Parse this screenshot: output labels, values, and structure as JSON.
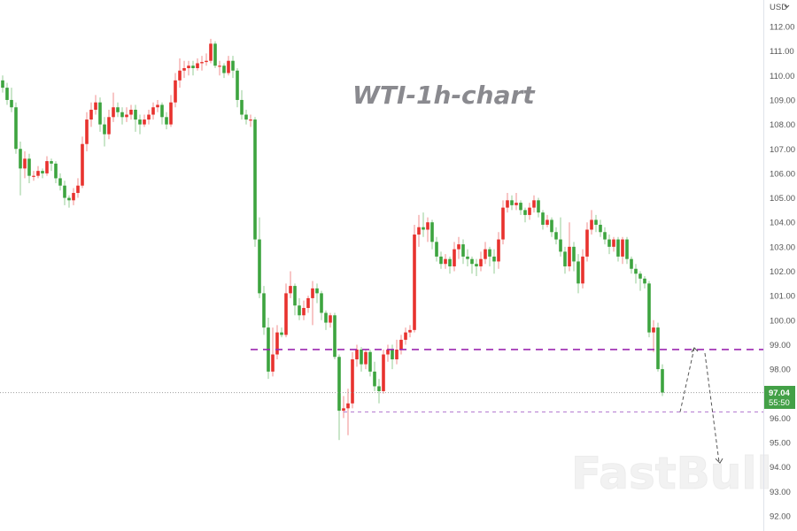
{
  "chart_data": {
    "type": "candlestick",
    "title": "WTI-1h-chart",
    "currency_label": "USD",
    "currency_menu_icon": "chevron-down-icon",
    "ylim": [
      91.5,
      112.9
    ],
    "y_ticks": [
      "112.00",
      "111.00",
      "110.00",
      "109.00",
      "108.00",
      "107.00",
      "106.00",
      "105.00",
      "104.00",
      "103.00",
      "102.00",
      "101.00",
      "100.00",
      "99.00",
      "98.00",
      "96.00",
      "95.00",
      "94.00",
      "93.00",
      "92.00"
    ],
    "up_color": "#e8322e",
    "down_color": "#3da43f",
    "last_price": {
      "value": "97.04",
      "countdown": "55:50",
      "color": "#43a047"
    },
    "levels": [
      {
        "price": 98.8,
        "style": "dashed-thick",
        "color": "#9c27b0"
      },
      {
        "price": 96.25,
        "style": "dashed-thin",
        "color": "#b57bd1"
      }
    ],
    "projection_path": [
      96.25,
      98.8,
      94.2
    ],
    "watermark": "FastBull",
    "candles": [
      [
        109.8,
        110.0,
        109.3,
        109.5
      ],
      [
        109.5,
        109.7,
        108.8,
        109.0
      ],
      [
        109.0,
        109.5,
        108.5,
        108.7
      ],
      [
        108.7,
        108.9,
        106.8,
        107.0
      ],
      [
        107.0,
        107.3,
        105.1,
        106.2
      ],
      [
        106.2,
        106.9,
        105.8,
        106.6
      ],
      [
        106.6,
        106.8,
        105.6,
        105.9
      ],
      [
        105.9,
        106.1,
        105.7,
        105.9
      ],
      [
        105.9,
        106.3,
        105.8,
        106.1
      ],
      [
        106.1,
        106.2,
        105.8,
        106.0
      ],
      [
        106.0,
        106.7,
        105.9,
        106.5
      ],
      [
        106.5,
        106.6,
        106.1,
        106.4
      ],
      [
        106.4,
        106.5,
        105.6,
        105.8
      ],
      [
        105.8,
        106.0,
        105.3,
        105.5
      ],
      [
        105.5,
        105.7,
        104.7,
        105.0
      ],
      [
        105.0,
        105.1,
        104.6,
        104.9
      ],
      [
        104.9,
        105.4,
        104.7,
        105.2
      ],
      [
        105.2,
        105.8,
        105.0,
        105.5
      ],
      [
        105.5,
        107.5,
        105.4,
        107.2
      ],
      [
        107.2,
        108.5,
        106.9,
        108.2
      ],
      [
        108.2,
        108.9,
        107.9,
        108.6
      ],
      [
        108.6,
        109.2,
        108.4,
        108.9
      ],
      [
        108.9,
        109.1,
        107.7,
        108.0
      ],
      [
        108.0,
        108.3,
        107.1,
        107.6
      ],
      [
        107.6,
        108.6,
        107.4,
        108.3
      ],
      [
        108.3,
        109.3,
        108.1,
        108.7
      ],
      [
        108.7,
        108.9,
        108.3,
        108.5
      ],
      [
        108.5,
        108.7,
        108.0,
        108.3
      ],
      [
        108.3,
        108.7,
        108.1,
        108.4
      ],
      [
        108.4,
        108.8,
        108.2,
        108.6
      ],
      [
        108.6,
        108.8,
        107.7,
        108.2
      ],
      [
        108.2,
        108.4,
        107.6,
        108.0
      ],
      [
        108.0,
        108.4,
        107.9,
        108.2
      ],
      [
        108.2,
        108.6,
        108.0,
        108.4
      ],
      [
        108.4,
        108.9,
        108.2,
        108.7
      ],
      [
        108.7,
        109.0,
        108.5,
        108.8
      ],
      [
        108.8,
        108.9,
        108.0,
        108.3
      ],
      [
        108.3,
        108.5,
        107.8,
        108.0
      ],
      [
        108.0,
        109.2,
        107.9,
        108.9
      ],
      [
        108.9,
        110.1,
        108.7,
        109.8
      ],
      [
        109.8,
        110.7,
        109.5,
        110.2
      ],
      [
        110.2,
        110.6,
        109.9,
        110.3
      ],
      [
        110.3,
        110.6,
        110.0,
        110.4
      ],
      [
        110.4,
        110.6,
        110.0,
        110.3
      ],
      [
        110.3,
        110.7,
        110.2,
        110.5
      ],
      [
        110.5,
        110.8,
        110.2,
        110.55
      ],
      [
        110.55,
        110.9,
        110.4,
        110.6
      ],
      [
        110.6,
        111.5,
        110.5,
        111.3
      ],
      [
        111.3,
        111.4,
        110.3,
        110.4
      ],
      [
        110.4,
        110.6,
        110.0,
        110.4
      ],
      [
        110.4,
        110.5,
        109.9,
        110.1
      ],
      [
        110.1,
        110.8,
        110.0,
        110.6
      ],
      [
        110.6,
        110.8,
        109.9,
        110.2
      ],
      [
        110.2,
        110.3,
        108.7,
        109.0
      ],
      [
        109.0,
        109.4,
        108.2,
        108.4
      ],
      [
        108.4,
        108.6,
        108.0,
        108.2
      ],
      [
        108.2,
        108.4,
        107.9,
        108.2
      ],
      [
        108.2,
        108.3,
        103.0,
        103.3
      ],
      [
        103.3,
        104.2,
        100.9,
        101.1
      ],
      [
        101.1,
        101.4,
        99.4,
        99.7
      ],
      [
        99.7,
        100.1,
        97.6,
        97.9
      ],
      [
        97.9,
        99.7,
        97.7,
        98.6
      ],
      [
        98.6,
        99.8,
        98.4,
        99.5
      ],
      [
        99.5,
        99.7,
        99.3,
        99.4
      ],
      [
        99.4,
        101.5,
        99.3,
        101.1
      ],
      [
        101.1,
        102.0,
        100.9,
        101.4
      ],
      [
        101.4,
        101.5,
        100.2,
        100.6
      ],
      [
        100.6,
        100.9,
        100.0,
        100.2
      ],
      [
        100.2,
        100.8,
        100.0,
        100.5
      ],
      [
        100.5,
        101.0,
        100.3,
        100.9
      ],
      [
        100.9,
        101.6,
        99.8,
        101.3
      ],
      [
        101.3,
        101.5,
        100.7,
        101.1
      ],
      [
        101.1,
        101.2,
        100.0,
        100.3
      ],
      [
        100.3,
        100.4,
        99.6,
        99.9
      ],
      [
        99.9,
        100.3,
        99.7,
        100.2
      ],
      [
        100.2,
        100.3,
        98.4,
        98.5
      ],
      [
        98.5,
        98.6,
        95.1,
        96.3
      ],
      [
        96.3,
        96.9,
        96.0,
        96.4
      ],
      [
        96.4,
        97.2,
        95.3,
        96.6
      ],
      [
        96.6,
        98.7,
        96.4,
        98.4
      ],
      [
        98.4,
        99.0,
        98.1,
        98.8
      ],
      [
        98.8,
        98.9,
        97.9,
        98.2
      ],
      [
        98.2,
        98.8,
        98.0,
        98.7
      ],
      [
        98.7,
        98.8,
        97.7,
        97.9
      ],
      [
        97.9,
        98.3,
        97.1,
        97.3
      ],
      [
        97.3,
        97.6,
        96.6,
        97.1
      ],
      [
        97.1,
        98.8,
        97.0,
        98.6
      ],
      [
        98.6,
        99.0,
        98.3,
        98.8
      ],
      [
        98.8,
        99.0,
        98.0,
        98.4
      ],
      [
        98.4,
        99.2,
        98.2,
        98.8
      ],
      [
        98.8,
        99.4,
        98.6,
        99.2
      ],
      [
        99.2,
        99.7,
        99.0,
        99.5
      ],
      [
        99.5,
        99.8,
        99.3,
        99.6
      ],
      [
        99.6,
        103.9,
        99.5,
        103.5
      ],
      [
        103.5,
        104.3,
        103.0,
        103.8
      ],
      [
        103.8,
        104.4,
        103.4,
        103.7
      ],
      [
        103.7,
        104.2,
        103.2,
        104.0
      ],
      [
        104.0,
        104.1,
        102.9,
        103.2
      ],
      [
        103.2,
        103.4,
        102.4,
        102.6
      ],
      [
        102.6,
        102.8,
        102.1,
        102.3
      ],
      [
        102.3,
        102.7,
        102.1,
        102.5
      ],
      [
        102.5,
        102.6,
        101.9,
        102.2
      ],
      [
        102.2,
        103.2,
        102.0,
        102.9
      ],
      [
        102.9,
        103.4,
        102.5,
        103.1
      ],
      [
        103.1,
        103.3,
        102.3,
        102.6
      ],
      [
        102.6,
        102.9,
        102.2,
        102.5
      ],
      [
        102.5,
        102.6,
        101.9,
        102.3
      ],
      [
        102.3,
        102.5,
        101.8,
        102.2
      ],
      [
        102.2,
        102.8,
        102.0,
        102.5
      ],
      [
        102.5,
        103.2,
        102.3,
        102.9
      ],
      [
        102.9,
        103.0,
        102.2,
        102.6
      ],
      [
        102.6,
        102.9,
        101.9,
        102.4
      ],
      [
        102.4,
        103.6,
        102.1,
        103.3
      ],
      [
        103.3,
        104.9,
        103.1,
        104.6
      ],
      [
        104.6,
        105.2,
        104.4,
        104.9
      ],
      [
        104.9,
        105.1,
        104.5,
        104.7
      ],
      [
        104.7,
        105.2,
        104.5,
        104.8
      ],
      [
        104.8,
        104.9,
        104.3,
        104.5
      ],
      [
        104.5,
        104.6,
        104.0,
        104.3
      ],
      [
        104.3,
        104.8,
        104.1,
        104.6
      ],
      [
        104.6,
        105.1,
        104.4,
        104.9
      ],
      [
        104.9,
        105.0,
        104.2,
        104.4
      ],
      [
        104.4,
        104.5,
        103.7,
        103.9
      ],
      [
        103.9,
        104.3,
        103.8,
        104.1
      ],
      [
        104.1,
        104.2,
        103.4,
        103.6
      ],
      [
        103.6,
        103.8,
        103.1,
        103.3
      ],
      [
        103.3,
        104.2,
        102.6,
        102.8
      ],
      [
        102.8,
        103.0,
        101.9,
        102.2
      ],
      [
        102.2,
        104.0,
        102.0,
        103.0
      ],
      [
        103.0,
        103.2,
        102.0,
        102.4
      ],
      [
        102.4,
        102.7,
        101.1,
        101.5
      ],
      [
        101.5,
        102.9,
        101.3,
        102.6
      ],
      [
        102.6,
        104.0,
        102.4,
        103.7
      ],
      [
        103.7,
        104.5,
        103.5,
        104.1
      ],
      [
        104.1,
        104.3,
        103.6,
        103.9
      ],
      [
        103.9,
        104.1,
        103.4,
        103.6
      ],
      [
        103.6,
        103.8,
        103.1,
        103.3
      ],
      [
        103.3,
        103.5,
        102.7,
        103.0
      ],
      [
        103.0,
        103.4,
        102.8,
        103.3
      ],
      [
        103.3,
        103.4,
        102.4,
        102.6
      ],
      [
        102.6,
        103.4,
        102.3,
        103.3
      ],
      [
        103.3,
        103.4,
        102.3,
        102.5
      ],
      [
        102.5,
        102.6,
        101.9,
        102.1
      ],
      [
        102.1,
        102.3,
        101.5,
        101.9
      ],
      [
        101.9,
        102.0,
        101.2,
        101.7
      ],
      [
        101.7,
        101.8,
        101.3,
        101.5
      ],
      [
        101.5,
        101.6,
        99.3,
        99.5
      ],
      [
        99.5,
        100.0,
        98.7,
        99.7
      ],
      [
        99.7,
        99.9,
        97.9,
        98.0
      ],
      [
        98.0,
        98.2,
        96.9,
        97.04
      ]
    ]
  }
}
